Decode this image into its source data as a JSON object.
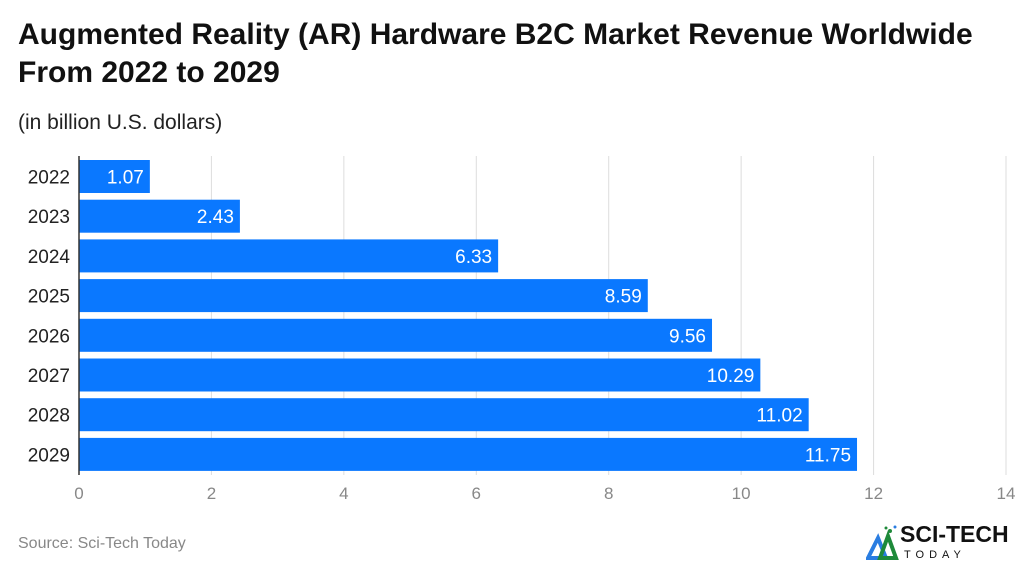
{
  "chart_data": {
    "type": "bar",
    "orientation": "horizontal",
    "title": "Augmented Reality (AR) Hardware B2C Market Revenue Worldwide From 2022 to 2029",
    "subtitle": "(in billion U.S. dollars)",
    "categories": [
      "2022",
      "2023",
      "2024",
      "2025",
      "2026",
      "2027",
      "2028",
      "2029"
    ],
    "values": [
      1.07,
      2.43,
      6.33,
      8.59,
      9.56,
      10.29,
      11.02,
      11.75
    ],
    "value_labels": [
      "1.07",
      "2.43",
      "6.33",
      "8.59",
      "9.56",
      "10.29",
      "11.02",
      "11.75"
    ],
    "xlim": [
      0,
      14
    ],
    "x_ticks": [
      "0",
      "2",
      "4",
      "6",
      "8",
      "10",
      "12",
      "14"
    ],
    "grid": true,
    "bar_color": "#0a78ff"
  },
  "source": "Source: Sci-Tech Today",
  "logo": {
    "main": "SCI-TECH",
    "sub": "TODAY"
  }
}
